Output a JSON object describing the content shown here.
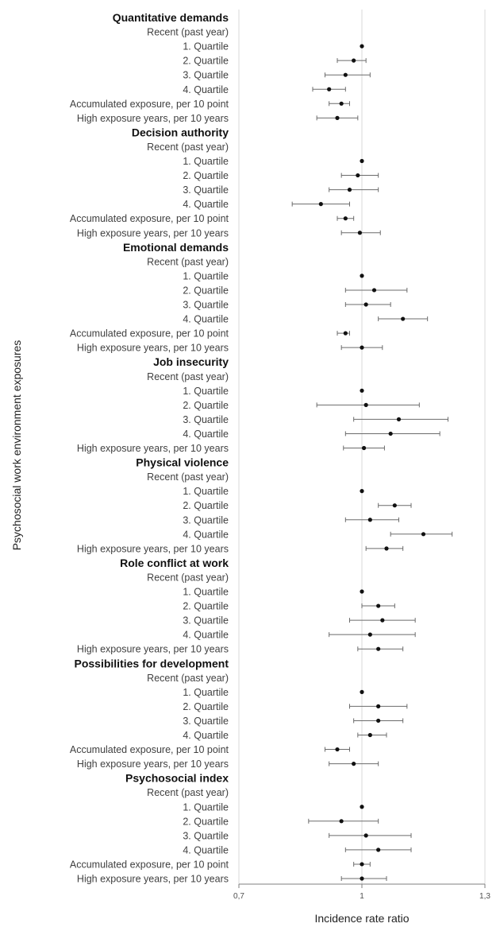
{
  "chart_data": {
    "type": "forest",
    "xlabel": "Incidence rate ratio",
    "ylabel": "Psychosocial work environment exposures",
    "xlim": [
      0.7,
      1.3
    ],
    "xticks": [
      "0,7",
      "1",
      "1,3"
    ],
    "reference_line": 1,
    "groups": [
      {
        "title": "Quantitative demands",
        "subtitle": "Recent (past year)",
        "rows": [
          {
            "label": "1. Quartile",
            "est": 1.0,
            "lo": null,
            "hi": null
          },
          {
            "label": "2. Quartile",
            "est": 0.98,
            "lo": 0.94,
            "hi": 1.01
          },
          {
            "label": "3. Quartile",
            "est": 0.96,
            "lo": 0.91,
            "hi": 1.02
          },
          {
            "label": "4. Quartile",
            "est": 0.92,
            "lo": 0.88,
            "hi": 0.96
          },
          {
            "label": "Accumulated exposure, per 10 point",
            "est": 0.95,
            "lo": 0.92,
            "hi": 0.97
          },
          {
            "label": "High exposure years, per 10 years",
            "est": 0.94,
            "lo": 0.89,
            "hi": 0.99
          }
        ]
      },
      {
        "title": "Decision authority",
        "subtitle": "Recent (past year)",
        "rows": [
          {
            "label": "1. Quartile",
            "est": 1.0,
            "lo": null,
            "hi": null
          },
          {
            "label": "2. Quartile",
            "est": 0.99,
            "lo": 0.95,
            "hi": 1.04
          },
          {
            "label": "3. Quartile",
            "est": 0.97,
            "lo": 0.92,
            "hi": 1.04
          },
          {
            "label": "4. Quartile",
            "est": 0.9,
            "lo": 0.83,
            "hi": 0.97
          },
          {
            "label": "Accumulated exposure, per 10 point",
            "est": 0.96,
            "lo": 0.94,
            "hi": 0.98
          },
          {
            "label": "High exposure years, per 10 years",
            "est": 0.995,
            "lo": 0.95,
            "hi": 1.045
          }
        ]
      },
      {
        "title": "Emotional demands",
        "subtitle": "Recent (past year)",
        "rows": [
          {
            "label": "1. Quartile",
            "est": 1.0,
            "lo": null,
            "hi": null
          },
          {
            "label": "2. Quartile",
            "est": 1.03,
            "lo": 0.96,
            "hi": 1.11
          },
          {
            "label": "3. Quartile",
            "est": 1.01,
            "lo": 0.96,
            "hi": 1.07
          },
          {
            "label": "4. Quartile",
            "est": 1.1,
            "lo": 1.04,
            "hi": 1.16
          },
          {
            "label": "Accumulated exposure, per 10 point",
            "est": 0.96,
            "lo": 0.94,
            "hi": 0.97
          },
          {
            "label": "High exposure years, per 10 years",
            "est": 1.0,
            "lo": 0.95,
            "hi": 1.05
          }
        ]
      },
      {
        "title": "Job insecurity",
        "subtitle": "Recent (past year)",
        "rows": [
          {
            "label": "1. Quartile",
            "est": 1.0,
            "lo": null,
            "hi": null
          },
          {
            "label": "2. Quartile",
            "est": 1.01,
            "lo": 0.89,
            "hi": 1.14
          },
          {
            "label": "3. Quartile",
            "est": 1.09,
            "lo": 0.98,
            "hi": 1.21
          },
          {
            "label": "4. Quartile",
            "est": 1.07,
            "lo": 0.96,
            "hi": 1.19
          },
          {
            "label": "High exposure years, per 10 years",
            "est": 1.005,
            "lo": 0.955,
            "hi": 1.055
          }
        ]
      },
      {
        "title": "Physical violence",
        "subtitle": "Recent (past year)",
        "rows": [
          {
            "label": "1. Quartile",
            "est": 1.0,
            "lo": null,
            "hi": null
          },
          {
            "label": "2. Quartile",
            "est": 1.08,
            "lo": 1.04,
            "hi": 1.12
          },
          {
            "label": "3. Quartile",
            "est": 1.02,
            "lo": 0.96,
            "hi": 1.09
          },
          {
            "label": "4. Quartile",
            "est": 1.15,
            "lo": 1.07,
            "hi": 1.22
          },
          {
            "label": "High exposure years, per 10 years",
            "est": 1.06,
            "lo": 1.01,
            "hi": 1.1
          }
        ]
      },
      {
        "title": "Role conflict at work",
        "subtitle": "Recent (past year)",
        "rows": [
          {
            "label": "1. Quartile",
            "est": 1.0,
            "lo": null,
            "hi": null
          },
          {
            "label": "2. Quartile",
            "est": 1.04,
            "lo": 1.0,
            "hi": 1.08
          },
          {
            "label": "3. Quartile",
            "est": 1.05,
            "lo": 0.97,
            "hi": 1.13
          },
          {
            "label": "4. Quartile",
            "est": 1.02,
            "lo": 0.92,
            "hi": 1.13
          },
          {
            "label": "High exposure years, per 10 years",
            "est": 1.04,
            "lo": 0.99,
            "hi": 1.1
          }
        ]
      },
      {
        "title": "Possibilities for development",
        "subtitle": "Recent (past year)",
        "rows": [
          {
            "label": "1. Quartile ",
            "est": 1.0,
            "lo": null,
            "hi": null
          },
          {
            "label": "2. Quartile",
            "est": 1.04,
            "lo": 0.97,
            "hi": 1.11
          },
          {
            "label": "3. Quartile",
            "est": 1.04,
            "lo": 0.98,
            "hi": 1.1
          },
          {
            "label": "4. Quartile",
            "est": 1.02,
            "lo": 0.99,
            "hi": 1.06
          },
          {
            "label": "Accumulated exposure, per 10 point",
            "est": 0.94,
            "lo": 0.91,
            "hi": 0.97
          },
          {
            "label": "High exposure years, per 10 years",
            "est": 0.98,
            "lo": 0.92,
            "hi": 1.04
          }
        ]
      },
      {
        "title": "Psychosocial index",
        "subtitle": "Recent (past year)",
        "rows": [
          {
            "label": "1. Quartile",
            "est": 1.0,
            "lo": null,
            "hi": null
          },
          {
            "label": "2. Quartile",
            "est": 0.95,
            "lo": 0.87,
            "hi": 1.04
          },
          {
            "label": "3. Quartile",
            "est": 1.01,
            "lo": 0.92,
            "hi": 1.12
          },
          {
            "label": "4. Quartile",
            "est": 1.04,
            "lo": 0.96,
            "hi": 1.12
          },
          {
            "label": "Accumulated exposure, per 10 point",
            "est": 1.0,
            "lo": 0.98,
            "hi": 1.02
          },
          {
            "label": "High exposure years, per 10 years",
            "est": 1.0,
            "lo": 0.95,
            "hi": 1.06
          }
        ]
      }
    ]
  }
}
